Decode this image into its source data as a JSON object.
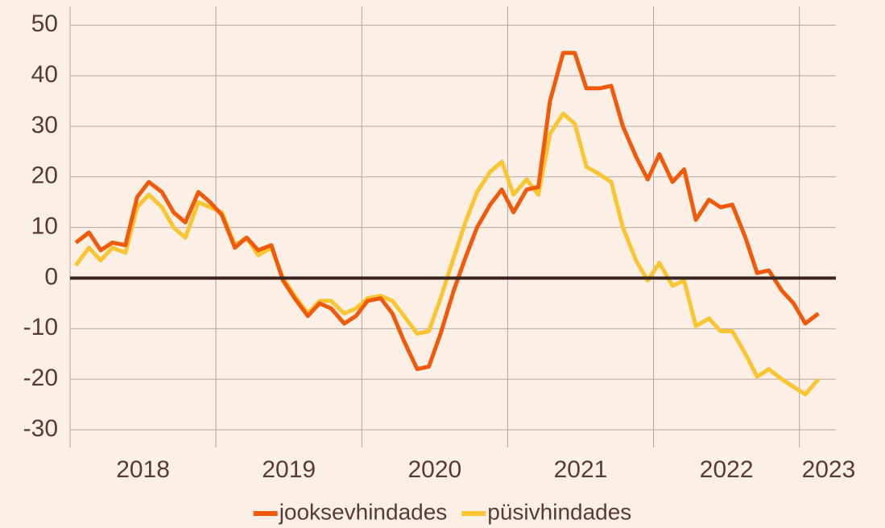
{
  "chart_data": {
    "type": "line",
    "x": [
      2018.04,
      2018.13,
      2018.21,
      2018.29,
      2018.38,
      2018.46,
      2018.54,
      2018.63,
      2018.71,
      2018.79,
      2018.88,
      2018.96,
      2019.04,
      2019.13,
      2019.21,
      2019.29,
      2019.38,
      2019.46,
      2019.54,
      2019.63,
      2019.71,
      2019.79,
      2019.88,
      2019.96,
      2020.04,
      2020.13,
      2020.21,
      2020.29,
      2020.38,
      2020.46,
      2020.54,
      2020.63,
      2020.71,
      2020.79,
      2020.88,
      2020.96,
      2021.04,
      2021.13,
      2021.21,
      2021.29,
      2021.38,
      2021.46,
      2021.54,
      2021.63,
      2021.71,
      2021.79,
      2021.88,
      2021.96,
      2022.04,
      2022.13,
      2022.21,
      2022.29,
      2022.38,
      2022.46,
      2022.54,
      2022.63,
      2022.71,
      2022.79,
      2022.88,
      2022.96,
      2023.04,
      2023.13
    ],
    "series": [
      {
        "name": "jooksevhindades",
        "color": "#f05a0a",
        "values": [
          7,
          9,
          5.5,
          7,
          6.5,
          16,
          19,
          17,
          13,
          11,
          17,
          15,
          12.5,
          6,
          8,
          5.5,
          6.5,
          -0.5,
          -4,
          -7.5,
          -5,
          -6,
          -9,
          -7.5,
          -4.5,
          -4,
          -7,
          -12.5,
          -18,
          -17.5,
          -11,
          -2.5,
          4,
          10,
          14.5,
          17.5,
          13,
          17.5,
          18,
          35,
          44.5,
          44.5,
          37.5,
          37.5,
          38,
          30,
          24,
          19.5,
          24.5,
          19,
          21.5,
          11.5,
          15.5,
          14,
          14.5,
          8,
          1,
          1.5,
          -2.5,
          -5,
          -9,
          -7
        ]
      },
      {
        "name": "püsivhindades",
        "color": "#fbc531",
        "values": [
          2.5,
          6,
          3.5,
          6,
          5,
          14,
          16.5,
          14,
          10,
          8,
          15,
          14,
          13,
          6.5,
          8,
          4.5,
          6,
          0,
          -3.5,
          -7,
          -4.5,
          -4.5,
          -7,
          -6,
          -4,
          -3.5,
          -4.5,
          -7.5,
          -11,
          -10.5,
          -4,
          4,
          11,
          17,
          21,
          23,
          16.5,
          19.5,
          16.5,
          28.5,
          32.5,
          30.5,
          22,
          20.5,
          19,
          10,
          3.5,
          -0.5,
          3,
          -1.5,
          -0.5,
          -9.5,
          -8,
          -10.5,
          -10.5,
          -15,
          -19.5,
          -18,
          -20,
          -21.5,
          -23,
          -20
        ]
      }
    ],
    "xlim": [
      2018,
      2023.25
    ],
    "xticks": [
      {
        "value": 2018.5,
        "label": "2018"
      },
      {
        "value": 2019.5,
        "label": "2019"
      },
      {
        "value": 2020.5,
        "label": "2020"
      },
      {
        "value": 2021.5,
        "label": "2021"
      },
      {
        "value": 2022.5,
        "label": "2022"
      },
      {
        "value": 2023.2,
        "label": "2023"
      }
    ],
    "xgrid": [
      2018,
      2019,
      2020,
      2021,
      2022,
      2023
    ],
    "ylim": [
      -33.5,
      53.7
    ],
    "yticks": [
      50,
      40,
      30,
      20,
      10,
      0,
      -10,
      -20,
      -30
    ],
    "grid": true,
    "legend": "bottom"
  }
}
